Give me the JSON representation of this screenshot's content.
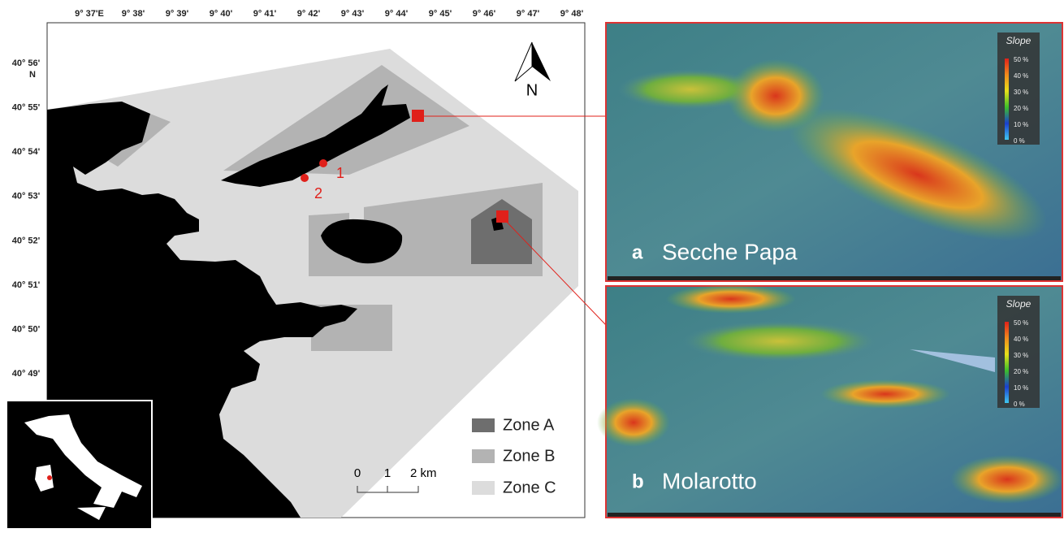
{
  "map": {
    "x_labels": [
      "9° 37'E",
      "9° 38'",
      "9° 39'",
      "9° 40'",
      "9° 41'",
      "9° 42'",
      "9° 43'",
      "9° 44'",
      "9° 45'",
      "9° 46'",
      "9° 47'",
      "9° 48'"
    ],
    "y_labels": [
      "40° 56'",
      "40° 55'",
      "40° 54'",
      "40° 53'",
      "40° 52'",
      "40° 51'",
      "40° 50'",
      "40° 49'"
    ],
    "lat_hemisphere": "N",
    "north_label": "N",
    "site_labels": [
      "1",
      "2"
    ],
    "scale_labels": [
      "0",
      "1",
      "2 km"
    ],
    "legend": [
      "Zone A",
      "Zone B",
      "Zone C"
    ]
  },
  "panels": [
    {
      "letter": "a",
      "title": "Secche Papa",
      "legend_title": "Slope",
      "legend_labels": [
        "50 %",
        "40 %",
        "30 %",
        "20 %",
        "10 %",
        "0 %"
      ]
    },
    {
      "letter": "b",
      "title": "Molarotto",
      "legend_title": "Slope",
      "legend_labels": [
        "50 %",
        "40 %",
        "30 %",
        "20 %",
        "10 %",
        "0 %"
      ]
    }
  ]
}
